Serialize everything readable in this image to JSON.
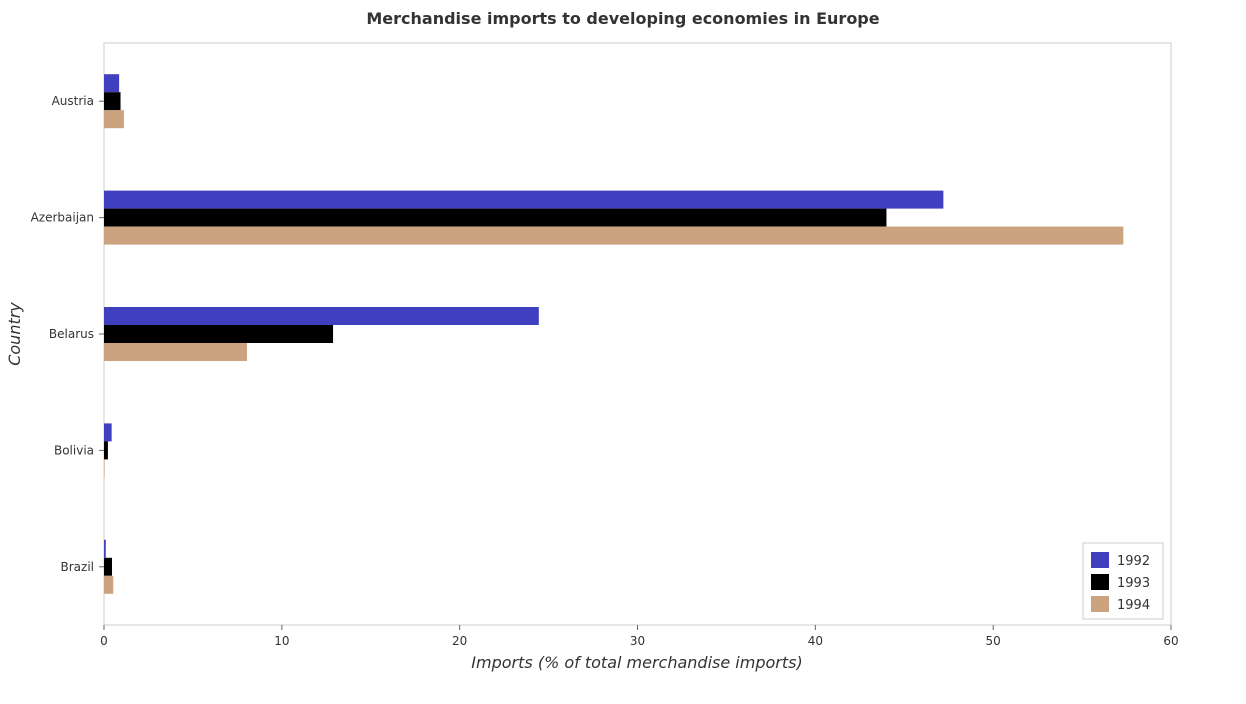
{
  "chart_data": {
    "type": "bar",
    "orientation": "horizontal",
    "title": "Merchandise imports to developing economies in Europe",
    "xlabel": "Imports (% of total merchandise imports)",
    "ylabel": "Country",
    "categories": [
      "Austria",
      "Azerbaijan",
      "Belarus",
      "Bolivia",
      "Brazil"
    ],
    "series": [
      {
        "name": "1992",
        "color": "#3f3fbf",
        "values": [
          0.85,
          47.2,
          24.45,
          0.43,
          0.1
        ]
      },
      {
        "name": "1993",
        "color": "#000000",
        "values": [
          0.93,
          44.0,
          12.88,
          0.22,
          0.45
        ]
      },
      {
        "name": "1994",
        "color": "#cca37f",
        "values": [
          1.12,
          57.32,
          8.04,
          0.03,
          0.52
        ]
      }
    ],
    "xlim": [
      0,
      60
    ],
    "xticks": [
      0,
      10,
      20,
      30,
      40,
      50,
      60
    ],
    "grid": false,
    "legend_position": "bottom-right"
  }
}
